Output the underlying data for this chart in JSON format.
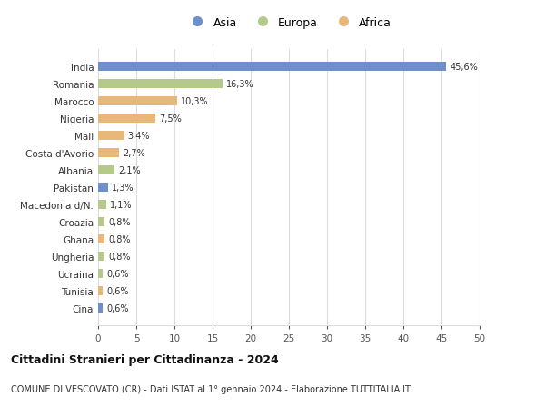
{
  "countries": [
    "India",
    "Romania",
    "Marocco",
    "Nigeria",
    "Mali",
    "Costa d'Avorio",
    "Albania",
    "Pakistan",
    "Macedonia d/N.",
    "Croazia",
    "Ghana",
    "Ungheria",
    "Ucraina",
    "Tunisia",
    "Cina"
  ],
  "values": [
    45.6,
    16.3,
    10.3,
    7.5,
    3.4,
    2.7,
    2.1,
    1.3,
    1.1,
    0.8,
    0.8,
    0.8,
    0.6,
    0.6,
    0.6
  ],
  "labels": [
    "45,6%",
    "16,3%",
    "10,3%",
    "7,5%",
    "3,4%",
    "2,7%",
    "2,1%",
    "1,3%",
    "1,1%",
    "0,8%",
    "0,8%",
    "0,8%",
    "0,6%",
    "0,6%",
    "0,6%"
  ],
  "continents": [
    "Asia",
    "Europa",
    "Africa",
    "Africa",
    "Africa",
    "Africa",
    "Europa",
    "Asia",
    "Europa",
    "Europa",
    "Africa",
    "Europa",
    "Europa",
    "Africa",
    "Asia"
  ],
  "colors": {
    "Asia": "#6e8fc9",
    "Europa": "#b5c98a",
    "Africa": "#e8b87a"
  },
  "legend_labels": [
    "Asia",
    "Europa",
    "Africa"
  ],
  "legend_colors": [
    "#6e8fc9",
    "#b5c98a",
    "#e8b87a"
  ],
  "title": "Cittadini Stranieri per Cittadinanza - 2024",
  "subtitle": "COMUNE DI VESCOVATO (CR) - Dati ISTAT al 1° gennaio 2024 - Elaborazione TUTTITALIA.IT",
  "xlim": [
    0,
    50
  ],
  "xticks": [
    0,
    5,
    10,
    15,
    20,
    25,
    30,
    35,
    40,
    45,
    50
  ],
  "background_color": "#ffffff",
  "grid_color": "#dddddd",
  "bar_height": 0.55
}
